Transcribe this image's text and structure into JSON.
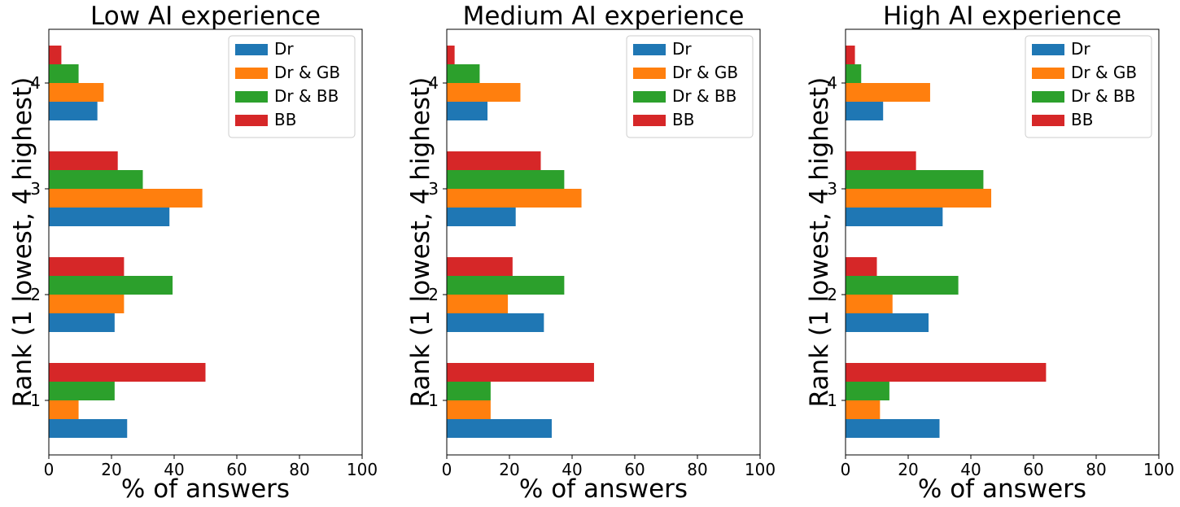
{
  "chart_data": [
    {
      "type": "bar",
      "orientation": "horizontal",
      "title": "Low AI experience",
      "xlabel": "% of answers",
      "ylabel": "Rank (1 lowest, 4 highest)",
      "categories": [
        "1",
        "2",
        "3",
        "4"
      ],
      "xlim": [
        0,
        100
      ],
      "xticks": [
        "0",
        "20",
        "40",
        "60",
        "80",
        "100"
      ],
      "legend_position": "top-right",
      "series": [
        {
          "name": "Dr",
          "color": "#1f77b4",
          "values": [
            25,
            21,
            38.5,
            15.5
          ]
        },
        {
          "name": "Dr & GB",
          "color": "#ff7f0e",
          "values": [
            9.5,
            24,
            49,
            17.5
          ]
        },
        {
          "name": "Dr & BB",
          "color": "#2ca02c",
          "values": [
            21,
            39.5,
            30,
            9.5
          ]
        },
        {
          "name": "BB",
          "color": "#d62728",
          "values": [
            50,
            24,
            22,
            4
          ]
        }
      ]
    },
    {
      "type": "bar",
      "orientation": "horizontal",
      "title": "Medium AI experience",
      "xlabel": "% of answers",
      "ylabel": "Rank (1 lowest, 4 highest)",
      "categories": [
        "1",
        "2",
        "3",
        "4"
      ],
      "xlim": [
        0,
        100
      ],
      "xticks": [
        "0",
        "20",
        "40",
        "60",
        "80",
        "100"
      ],
      "legend_position": "top-right",
      "series": [
        {
          "name": "Dr",
          "color": "#1f77b4",
          "values": [
            33.5,
            31,
            22,
            13
          ]
        },
        {
          "name": "Dr & GB",
          "color": "#ff7f0e",
          "values": [
            14,
            19.5,
            43,
            23.5
          ]
        },
        {
          "name": "Dr & BB",
          "color": "#2ca02c",
          "values": [
            14,
            37.5,
            37.5,
            10.5
          ]
        },
        {
          "name": "BB",
          "color": "#d62728",
          "values": [
            47,
            21,
            30,
            2.5
          ]
        }
      ]
    },
    {
      "type": "bar",
      "orientation": "horizontal",
      "title": "High AI experience",
      "xlabel": "% of answers",
      "ylabel": "Rank (1 lowest, 4 highest)",
      "categories": [
        "1",
        "2",
        "3",
        "4"
      ],
      "xlim": [
        0,
        100
      ],
      "xticks": [
        "0",
        "20",
        "40",
        "60",
        "80",
        "100"
      ],
      "legend_position": "top-right",
      "series": [
        {
          "name": "Dr",
          "color": "#1f77b4",
          "values": [
            30,
            26.5,
            31,
            12
          ]
        },
        {
          "name": "Dr & GB",
          "color": "#ff7f0e",
          "values": [
            11,
            15,
            46.5,
            27
          ]
        },
        {
          "name": "Dr & BB",
          "color": "#2ca02c",
          "values": [
            14,
            36,
            44,
            5
          ]
        },
        {
          "name": "BB",
          "color": "#d62728",
          "values": [
            64,
            10,
            22.5,
            3
          ]
        }
      ]
    }
  ]
}
